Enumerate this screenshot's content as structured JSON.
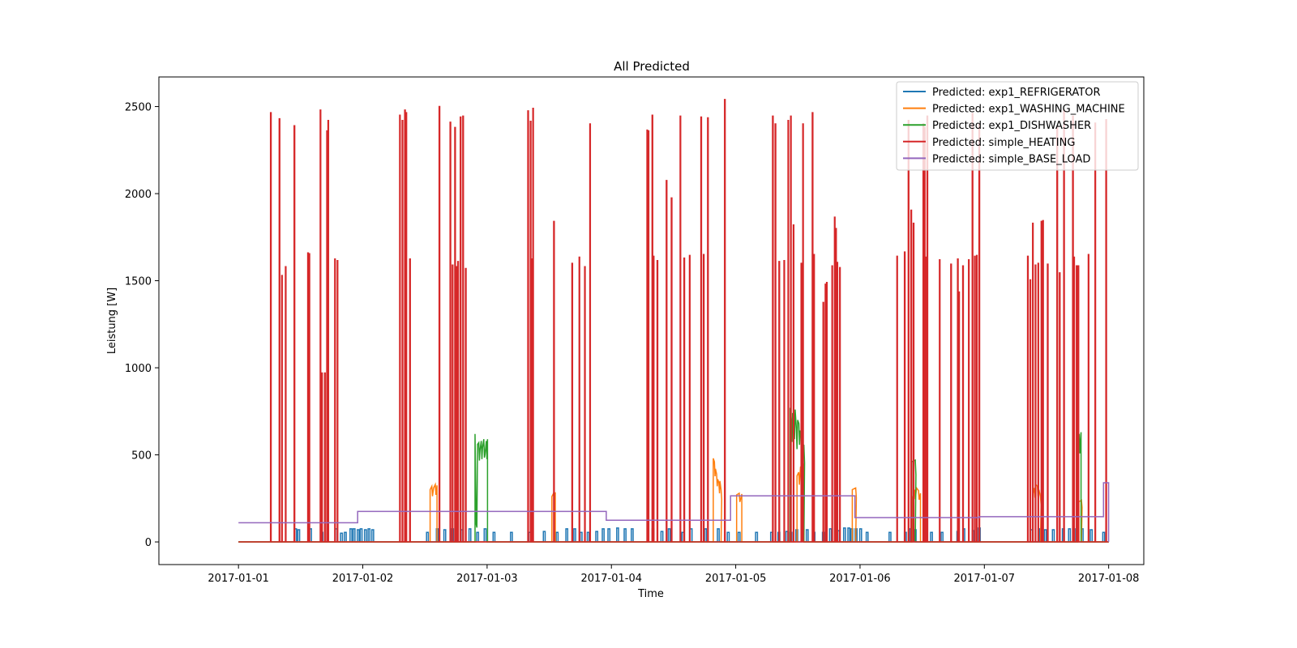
{
  "chart_data": {
    "type": "line",
    "title": "All Predicted",
    "xlabel": "Time",
    "ylabel": "Leistung [W]",
    "xlim": [
      "2016-12-31T08:38",
      "2017-01-08T06:47"
    ],
    "ylim": [
      -130,
      2670
    ],
    "x_ticks": [
      "2017-01-01",
      "2017-01-02",
      "2017-01-03",
      "2017-01-04",
      "2017-01-05",
      "2017-01-06",
      "2017-01-07",
      "2017-01-08"
    ],
    "y_ticks": [
      0,
      500,
      1000,
      1500,
      2000,
      2500
    ],
    "legend_position": "top-right",
    "grid": false,
    "series": [
      {
        "name": "Predicted: exp1_REFRIGERATOR",
        "color": "#1f77b4",
        "spike_width_hours": 0.35,
        "points": [
          [
            "2017-01-01T08:24",
            0
          ],
          [
            "2017-01-01T11:02",
            75
          ],
          [
            "2017-01-01T11:38",
            70
          ],
          [
            "2017-01-01T13:55",
            75
          ],
          [
            "2017-01-01T16:07",
            55
          ],
          [
            "2017-01-01T18:53",
            75
          ],
          [
            "2017-01-01T19:53",
            50
          ],
          [
            "2017-01-01T20:38",
            55
          ],
          [
            "2017-01-01T21:43",
            75
          ],
          [
            "2017-01-01T22:19",
            75
          ],
          [
            "2017-01-01T23:07",
            70
          ],
          [
            "2017-01-01T23:41",
            75
          ],
          [
            "2017-01-02T00:31",
            70
          ],
          [
            "2017-01-02T01:12",
            75
          ],
          [
            "2017-01-02T01:55",
            70
          ],
          [
            "2017-01-02T12:29",
            55
          ],
          [
            "2017-01-02T14:23",
            75
          ],
          [
            "2017-01-02T15:50",
            70
          ],
          [
            "2017-01-02T17:20",
            75
          ],
          [
            "2017-01-02T19:10",
            70
          ],
          [
            "2017-01-02T20:41",
            75
          ],
          [
            "2017-01-02T22:10",
            55
          ],
          [
            "2017-01-02T23:37",
            75
          ],
          [
            "2017-01-03T01:20",
            55
          ],
          [
            "2017-01-03T04:42",
            55
          ],
          [
            "2017-01-03T08:12",
            55
          ],
          [
            "2017-01-03T11:02",
            60
          ],
          [
            "2017-01-03T13:31",
            55
          ],
          [
            "2017-01-03T15:23",
            75
          ],
          [
            "2017-01-03T16:55",
            75
          ],
          [
            "2017-01-03T18:09",
            55
          ],
          [
            "2017-01-03T19:31",
            55
          ],
          [
            "2017-01-03T21:10",
            60
          ],
          [
            "2017-01-03T22:25",
            75
          ],
          [
            "2017-01-03T23:31",
            75
          ],
          [
            "2017-01-04T01:12",
            80
          ],
          [
            "2017-01-04T02:38",
            75
          ],
          [
            "2017-01-04T04:01",
            75
          ],
          [
            "2017-01-04T08:02",
            75
          ],
          [
            "2017-01-04T09:45",
            60
          ],
          [
            "2017-01-04T11:10",
            75
          ],
          [
            "2017-01-04T13:48",
            55
          ],
          [
            "2017-01-04T15:23",
            75
          ],
          [
            "2017-01-04T18:09",
            75
          ],
          [
            "2017-01-04T20:38",
            75
          ],
          [
            "2017-01-04T22:33",
            55
          ],
          [
            "2017-01-05T00:39",
            55
          ],
          [
            "2017-01-05T04:01",
            55
          ],
          [
            "2017-01-05T06:55",
            55
          ],
          [
            "2017-01-05T08:20",
            55
          ],
          [
            "2017-01-05T09:53",
            60
          ],
          [
            "2017-01-05T10:39",
            55
          ],
          [
            "2017-01-05T11:47",
            70
          ],
          [
            "2017-01-05T12:55",
            60
          ],
          [
            "2017-01-05T13:48",
            70
          ],
          [
            "2017-01-05T15:07",
            55
          ],
          [
            "2017-01-05T16:55",
            55
          ],
          [
            "2017-01-05T18:18",
            75
          ],
          [
            "2017-01-05T19:50",
            65
          ],
          [
            "2017-01-05T21:00",
            80
          ],
          [
            "2017-01-05T21:50",
            80
          ],
          [
            "2017-01-05T22:25",
            75
          ],
          [
            "2017-01-05T23:14",
            75
          ],
          [
            "2017-01-06T00:07",
            75
          ],
          [
            "2017-01-06T01:22",
            55
          ],
          [
            "2017-01-06T05:47",
            55
          ],
          [
            "2017-01-06T08:45",
            55
          ],
          [
            "2017-01-06T09:45",
            75
          ],
          [
            "2017-01-06T10:39",
            70
          ],
          [
            "2017-01-06T13:48",
            55
          ],
          [
            "2017-01-06T15:50",
            55
          ],
          [
            "2017-01-06T18:53",
            60
          ],
          [
            "2017-01-06T20:02",
            75
          ],
          [
            "2017-01-06T21:50",
            65
          ],
          [
            "2017-01-06T23:02",
            80
          ],
          [
            "2017-01-07T09:07",
            70
          ],
          [
            "2017-01-07T10:48",
            75
          ],
          [
            "2017-01-07T11:47",
            70
          ],
          [
            "2017-01-07T13:19",
            70
          ],
          [
            "2017-01-07T15:15",
            75
          ],
          [
            "2017-01-07T16:26",
            75
          ],
          [
            "2017-01-07T17:49",
            75
          ],
          [
            "2017-01-07T18:53",
            75
          ],
          [
            "2017-01-07T20:38",
            70
          ],
          [
            "2017-01-07T23:02",
            55
          ]
        ]
      },
      {
        "name": "Predicted: exp1_WASHING_MACHINE",
        "color": "#ff7f0e",
        "blocks": [
          {
            "start": "2017-01-02T13:00",
            "end": "2017-01-02T14:20",
            "values": [
              300,
              320,
              310,
              330,
              325
            ]
          },
          {
            "start": "2017-01-03T12:30",
            "end": "2017-01-03T13:10",
            "values": [
              260,
              280,
              285
            ]
          },
          {
            "start": "2017-01-04T19:40",
            "end": "2017-01-04T21:10",
            "values": [
              480,
              460,
              420,
              390,
              360,
              340,
              350,
              300
            ]
          },
          {
            "start": "2017-01-05T00:10",
            "end": "2017-01-05T01:10",
            "values": [
              270,
              280,
              275
            ]
          },
          {
            "start": "2017-01-05T11:50",
            "end": "2017-01-05T13:10",
            "values": [
              380,
              400,
              430,
              440,
              450
            ]
          },
          {
            "start": "2017-01-05T22:30",
            "end": "2017-01-05T23:10",
            "values": [
              300,
              310
            ]
          },
          {
            "start": "2017-01-06T10:10",
            "end": "2017-01-06T11:40",
            "values": [
              250,
              300,
              310,
              295,
              280
            ]
          },
          {
            "start": "2017-01-07T09:20",
            "end": "2017-01-07T10:50",
            "values": [
              270,
              310,
              330,
              320,
              300,
              260
            ]
          },
          {
            "start": "2017-01-07T18:15",
            "end": "2017-01-07T18:45",
            "values": [
              230,
              240
            ]
          }
        ]
      },
      {
        "name": "Predicted: exp1_DISHWASHER",
        "color": "#2ca02c",
        "blocks": [
          {
            "start": "2017-01-02T21:40",
            "end": "2017-01-03T00:05",
            "values": [
              620,
              100,
              560,
              570,
              530,
              580,
              540,
              590,
              500,
              580,
              590
            ]
          },
          {
            "start": "2017-01-05T10:30",
            "end": "2017-01-05T13:10",
            "values": [
              770,
              700,
              740,
              720,
              760,
              650,
              700,
              680,
              640,
              600,
              560,
              555
            ]
          },
          {
            "start": "2017-01-06T10:00",
            "end": "2017-01-06T10:40",
            "values": [
              460,
              470
            ]
          },
          {
            "start": "2017-01-07T18:00",
            "end": "2017-01-07T18:40",
            "values": [
              600,
              620,
              630
            ]
          }
        ]
      },
      {
        "name": "Predicted: simple_HEATING",
        "color": "#d62728",
        "spike_width_hours": 0.12,
        "points": [
          [
            "2017-01-01T06:15",
            2465
          ],
          [
            "2017-01-01T07:55",
            2430
          ],
          [
            "2017-01-01T08:24",
            1530
          ],
          [
            "2017-01-01T09:07",
            1580
          ],
          [
            "2017-01-01T10:48",
            2390
          ],
          [
            "2017-01-01T13:26",
            1660
          ],
          [
            "2017-01-01T13:41",
            1655
          ],
          [
            "2017-01-01T15:50",
            2480
          ],
          [
            "2017-01-01T16:07",
            970
          ],
          [
            "2017-01-01T16:41",
            970
          ],
          [
            "2017-01-01T17:06",
            2360
          ],
          [
            "2017-01-01T17:20",
            2420
          ],
          [
            "2017-01-01T18:38",
            1625
          ],
          [
            "2017-01-01T19:07",
            1615
          ],
          [
            "2017-01-02T07:10",
            2450
          ],
          [
            "2017-01-02T07:40",
            2420
          ],
          [
            "2017-01-02T08:09",
            2480
          ],
          [
            "2017-01-02T08:24",
            2465
          ],
          [
            "2017-01-02T09:07",
            1625
          ],
          [
            "2017-01-02T14:48",
            2500
          ],
          [
            "2017-01-02T16:55",
            2410
          ],
          [
            "2017-01-02T17:20",
            1590
          ],
          [
            "2017-01-02T17:49",
            2380
          ],
          [
            "2017-01-02T18:09",
            1580
          ],
          [
            "2017-01-02T18:24",
            1610
          ],
          [
            "2017-01-02T18:53",
            2440
          ],
          [
            "2017-01-02T19:22",
            2445
          ],
          [
            "2017-01-02T19:53",
            1570
          ],
          [
            "2017-01-03T07:55",
            2475
          ],
          [
            "2017-01-03T08:24",
            2415
          ],
          [
            "2017-01-03T08:38",
            1625
          ],
          [
            "2017-01-03T08:53",
            2490
          ],
          [
            "2017-01-03T12:55",
            1840
          ],
          [
            "2017-01-03T16:26",
            1600
          ],
          [
            "2017-01-03T17:49",
            1635
          ],
          [
            "2017-01-03T18:53",
            1580
          ],
          [
            "2017-01-03T19:53",
            2400
          ],
          [
            "2017-01-04T06:55",
            2365
          ],
          [
            "2017-01-04T07:10",
            2360
          ],
          [
            "2017-01-04T07:55",
            2450
          ],
          [
            "2017-01-04T08:09",
            1640
          ],
          [
            "2017-01-04T08:53",
            1615
          ],
          [
            "2017-01-04T10:39",
            2075
          ],
          [
            "2017-01-04T11:37",
            1975
          ],
          [
            "2017-01-04T13:19",
            2445
          ],
          [
            "2017-01-04T14:04",
            1630
          ],
          [
            "2017-01-04T15:07",
            1645
          ],
          [
            "2017-01-04T17:20",
            2440
          ],
          [
            "2017-01-04T17:49",
            1650
          ],
          [
            "2017-01-04T18:38",
            2435
          ],
          [
            "2017-01-04T21:54",
            2540
          ],
          [
            "2017-01-05T07:10",
            2445
          ],
          [
            "2017-01-05T07:40",
            2400
          ],
          [
            "2017-01-05T08:24",
            1610
          ],
          [
            "2017-01-05T09:22",
            1615
          ],
          [
            "2017-01-05T10:09",
            2420
          ],
          [
            "2017-01-05T10:39",
            2445
          ],
          [
            "2017-01-05T11:10",
            1820
          ],
          [
            "2017-01-05T12:40",
            1600
          ],
          [
            "2017-01-05T13:00",
            2400
          ],
          [
            "2017-01-05T14:50",
            2465
          ],
          [
            "2017-01-05T15:07",
            1650
          ],
          [
            "2017-01-05T16:55",
            1375
          ],
          [
            "2017-01-05T17:20",
            1480
          ],
          [
            "2017-01-05T17:35",
            1490
          ],
          [
            "2017-01-05T18:38",
            1585
          ],
          [
            "2017-01-05T19:07",
            1865
          ],
          [
            "2017-01-05T19:22",
            1800
          ],
          [
            "2017-01-05T19:37",
            1605
          ],
          [
            "2017-01-05T20:07",
            1575
          ],
          [
            "2017-01-06T07:10",
            1640
          ],
          [
            "2017-01-06T08:38",
            1665
          ],
          [
            "2017-01-06T09:22",
            2420
          ],
          [
            "2017-01-06T09:53",
            1905
          ],
          [
            "2017-01-06T10:20",
            1830
          ],
          [
            "2017-01-06T12:14",
            2400
          ],
          [
            "2017-01-06T12:29",
            2380
          ],
          [
            "2017-01-06T12:43",
            1635
          ],
          [
            "2017-01-06T13:00",
            2445
          ],
          [
            "2017-01-06T15:23",
            1620
          ],
          [
            "2017-01-06T17:35",
            1595
          ],
          [
            "2017-01-06T18:53",
            1625
          ],
          [
            "2017-01-06T19:07",
            1435
          ],
          [
            "2017-01-06T19:53",
            1585
          ],
          [
            "2017-01-06T21:00",
            1620
          ],
          [
            "2017-01-06T21:43",
            2460
          ],
          [
            "2017-01-06T22:10",
            1640
          ],
          [
            "2017-01-06T22:33",
            1645
          ],
          [
            "2017-01-06T23:02",
            2400
          ],
          [
            "2017-01-07T08:24",
            1640
          ],
          [
            "2017-01-07T08:53",
            1505
          ],
          [
            "2017-01-07T09:22",
            1830
          ],
          [
            "2017-01-07T09:53",
            1590
          ],
          [
            "2017-01-07T10:25",
            1600
          ],
          [
            "2017-01-07T11:02",
            1840
          ],
          [
            "2017-01-07T11:20",
            1845
          ],
          [
            "2017-01-07T12:14",
            1595
          ],
          [
            "2017-01-07T14:04",
            2380
          ],
          [
            "2017-01-07T14:33",
            1545
          ],
          [
            "2017-01-07T15:23",
            2480
          ],
          [
            "2017-01-07T17:06",
            2445
          ],
          [
            "2017-01-07T17:20",
            1635
          ],
          [
            "2017-01-07T17:49",
            1585
          ],
          [
            "2017-01-07T18:09",
            1585
          ],
          [
            "2017-01-07T20:07",
            1650
          ],
          [
            "2017-01-07T21:25",
            2405
          ],
          [
            "2017-01-07T23:31",
            2425
          ]
        ]
      },
      {
        "name": "Predicted: simple_BASE_LOAD",
        "color": "#9467bd",
        "steps": [
          {
            "start": "2017-01-01T00:00",
            "end": "2017-01-01T23:00",
            "value": 110
          },
          {
            "start": "2017-01-01T23:00",
            "end": "2017-01-03T23:00",
            "value": 175
          },
          {
            "start": "2017-01-03T23:00",
            "end": "2017-01-04T23:00",
            "value": 125
          },
          {
            "start": "2017-01-04T23:00",
            "end": "2017-01-05T23:00",
            "value": 265
          },
          {
            "start": "2017-01-05T23:00",
            "end": "2017-01-06T23:00",
            "value": 140
          },
          {
            "start": "2017-01-06T23:00",
            "end": "2017-01-07T23:00",
            "value": 145
          },
          {
            "start": "2017-01-07T23:00",
            "end": "2017-01-07T23:59",
            "value": 340
          }
        ]
      }
    ]
  }
}
